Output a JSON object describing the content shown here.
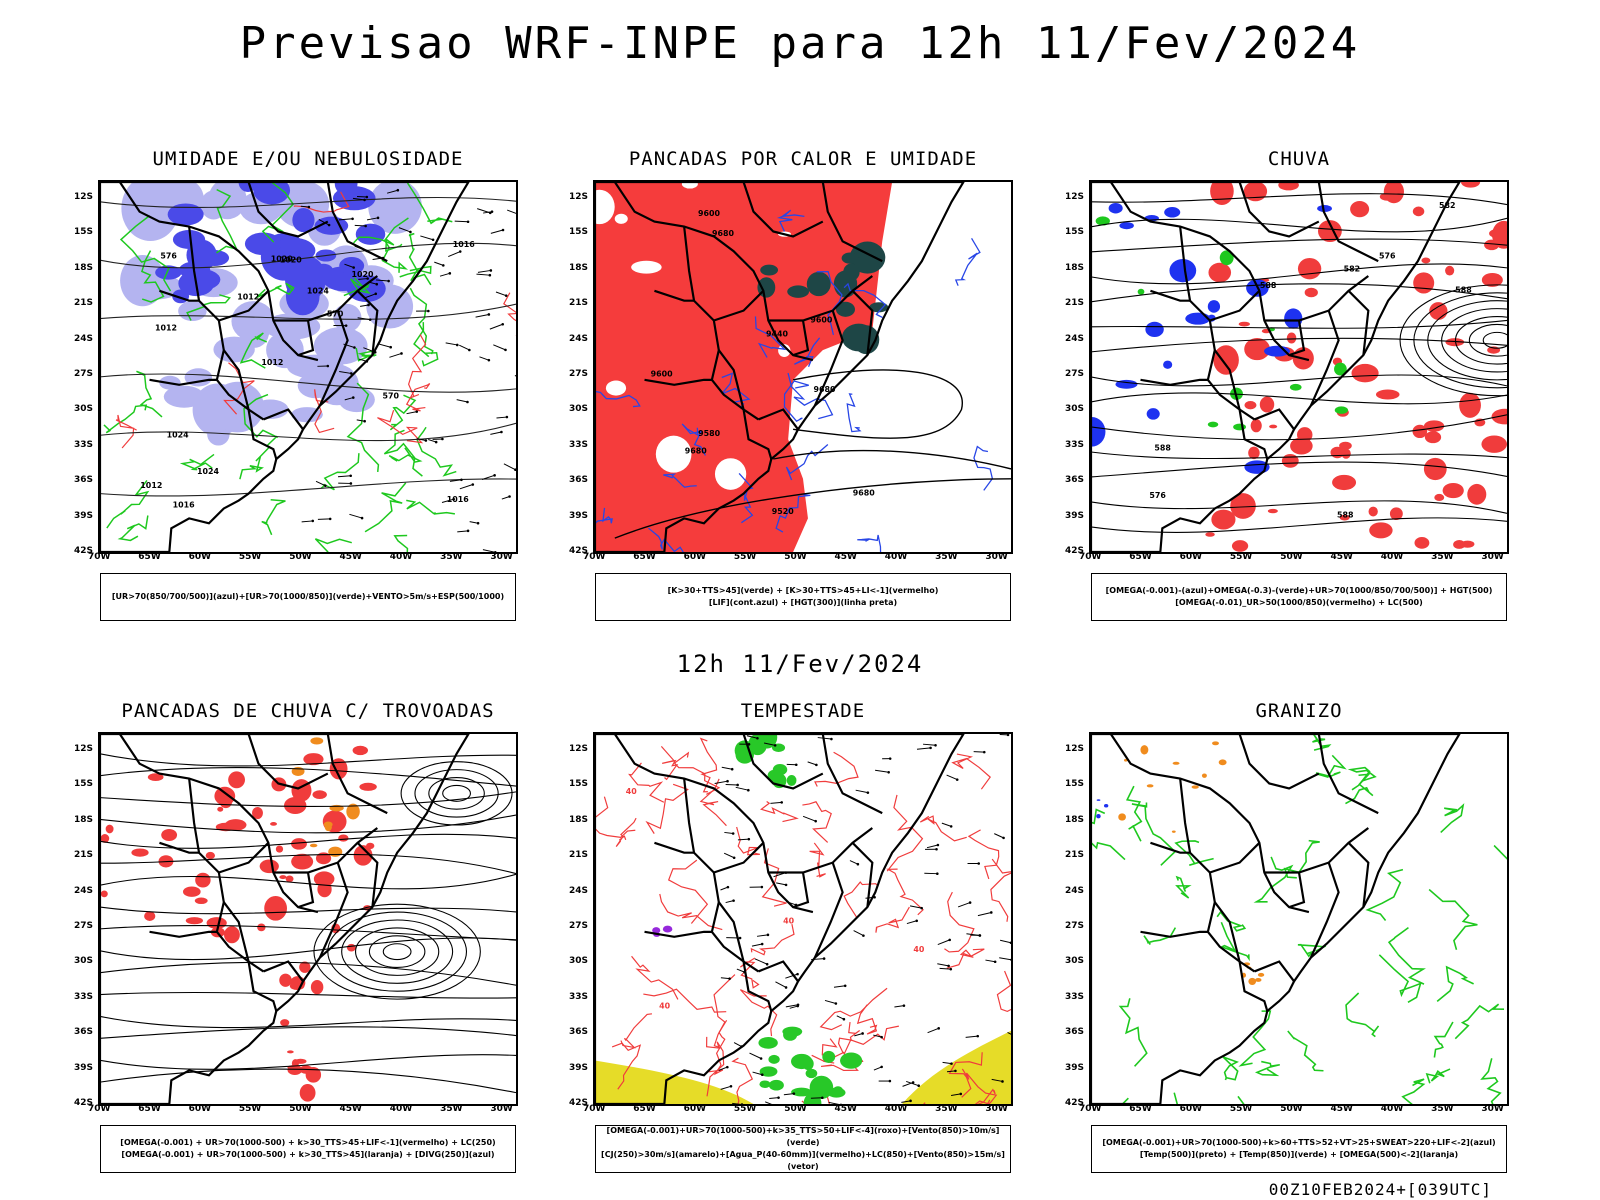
{
  "header": {
    "title": "Previsao WRF-INPE  para 12h 11/Fev/2024"
  },
  "middle": {
    "subtitle": "12h 11/Fev/2024"
  },
  "axes": {
    "lat_labels": [
      "12S",
      "15S",
      "18S",
      "21S",
      "24S",
      "27S",
      "30S",
      "33S",
      "36S",
      "39S",
      "42S"
    ],
    "lon_labels": [
      "70W",
      "65W",
      "60W",
      "55W",
      "50W",
      "45W",
      "40W",
      "35W",
      "30W"
    ]
  },
  "panels": [
    {
      "id": "umidade",
      "title": "UMIDADE E/OU NEBULOSIDADE",
      "legend": [
        "[UR>70(850/700/500)](azul)+[UR>70(1000/850)](verde)+VENTO>5m/s+ESP(500/1000)"
      ],
      "contour_labels": [
        "1016",
        "1012",
        "1016",
        "1012",
        "1020",
        "1016",
        "1020",
        "1024",
        "1024",
        "1012",
        "1012",
        "1024",
        "1020",
        "570",
        "570",
        "576"
      ],
      "colors": {
        "blue": "#4a4ae8",
        "lightblue": "#b4b4f0",
        "green": "#1ec81e",
        "red": "#f03c3c"
      }
    },
    {
      "id": "pancadas_calor",
      "title": "PANCADAS POR CALOR E UMIDADE",
      "legend": [
        "[K>30+TTS>45](verde) + [K>30+TTS>45+LI<-1](vermelho)",
        "[LIF](cont.azul) + [HGT(300)](linha preta)"
      ],
      "contour_labels": [
        "9680",
        "9680",
        "9680",
        "9600",
        "9680",
        "9600",
        "9520",
        "9440",
        "9580",
        "9600"
      ],
      "colors": {
        "red": "#f53c3c",
        "darkgreen": "#1e4646",
        "blue": "#2846e6"
      }
    },
    {
      "id": "chuva",
      "title": "CHUVA",
      "legend": [
        "[OMEGA(-0.001)-(azul)+OMEGA(-0.3)-(verde)+UR>70(1000/850/700/500)] + HGT(500)",
        "[OMEGA(-0.01)_UR>50(1000/850)(vermelho) + LC(500)"
      ],
      "contour_labels": [
        "588",
        "588",
        "588",
        "582",
        "576",
        "582",
        "576",
        "588"
      ],
      "colors": {
        "red": "#f03c3c",
        "blue": "#1e32f0",
        "green": "#1ec81e"
      }
    },
    {
      "id": "pancadas_trovoadas",
      "title": "PANCADAS DE CHUVA C/ TROVOADAS",
      "legend": [
        "[OMEGA(-0.001) + UR>70(1000-500) + k>30_TTS>45+LIF<-1](vermelho) + LC(250)",
        "[OMEGA(-0.001) + UR>70(1000-500) + k>30_TTS>45](laranja) + [DIVG(250)](azul)"
      ],
      "colors": {
        "red": "#f03c3c",
        "orange": "#f08c1e",
        "blue": "#1e32f0"
      }
    },
    {
      "id": "tempestade",
      "title": "TEMPESTADE",
      "legend": [
        "[OMEGA(-0.001)+UR>70(1000-500)+k>35_TTS>50+LIF<-4](roxo)+[Vento(850)>10m/s](verde)",
        "[CJ(250)>30m/s](amarelo)+[Agua_P(40-60mm)](vermelho)+LC(850)+[Vento(850)>15m/s](vetor)"
      ],
      "contour_labels": [
        "40",
        "40",
        "40",
        "40"
      ],
      "colors": {
        "red": "#f03c3c",
        "green": "#28c828",
        "yellow": "#e6dc28",
        "purple": "#9628dc"
      }
    },
    {
      "id": "granizo",
      "title": "GRANIZO",
      "legend": [
        "[OMEGA(-0.001)+UR>70(1000-500)+k>60+TTS>52+VT>25+SWEAT>220+LIF<-2](azul)",
        "[Temp(500)](preto) + [Temp(850)](verde) + [OMEGA(500)<-2](laranja)"
      ],
      "colors": {
        "green": "#1ec81e",
        "orange": "#f08c1e",
        "blue": "#1e32f0"
      }
    }
  ],
  "footer": {
    "run": "00Z10FEB2024+[039UTC]"
  }
}
